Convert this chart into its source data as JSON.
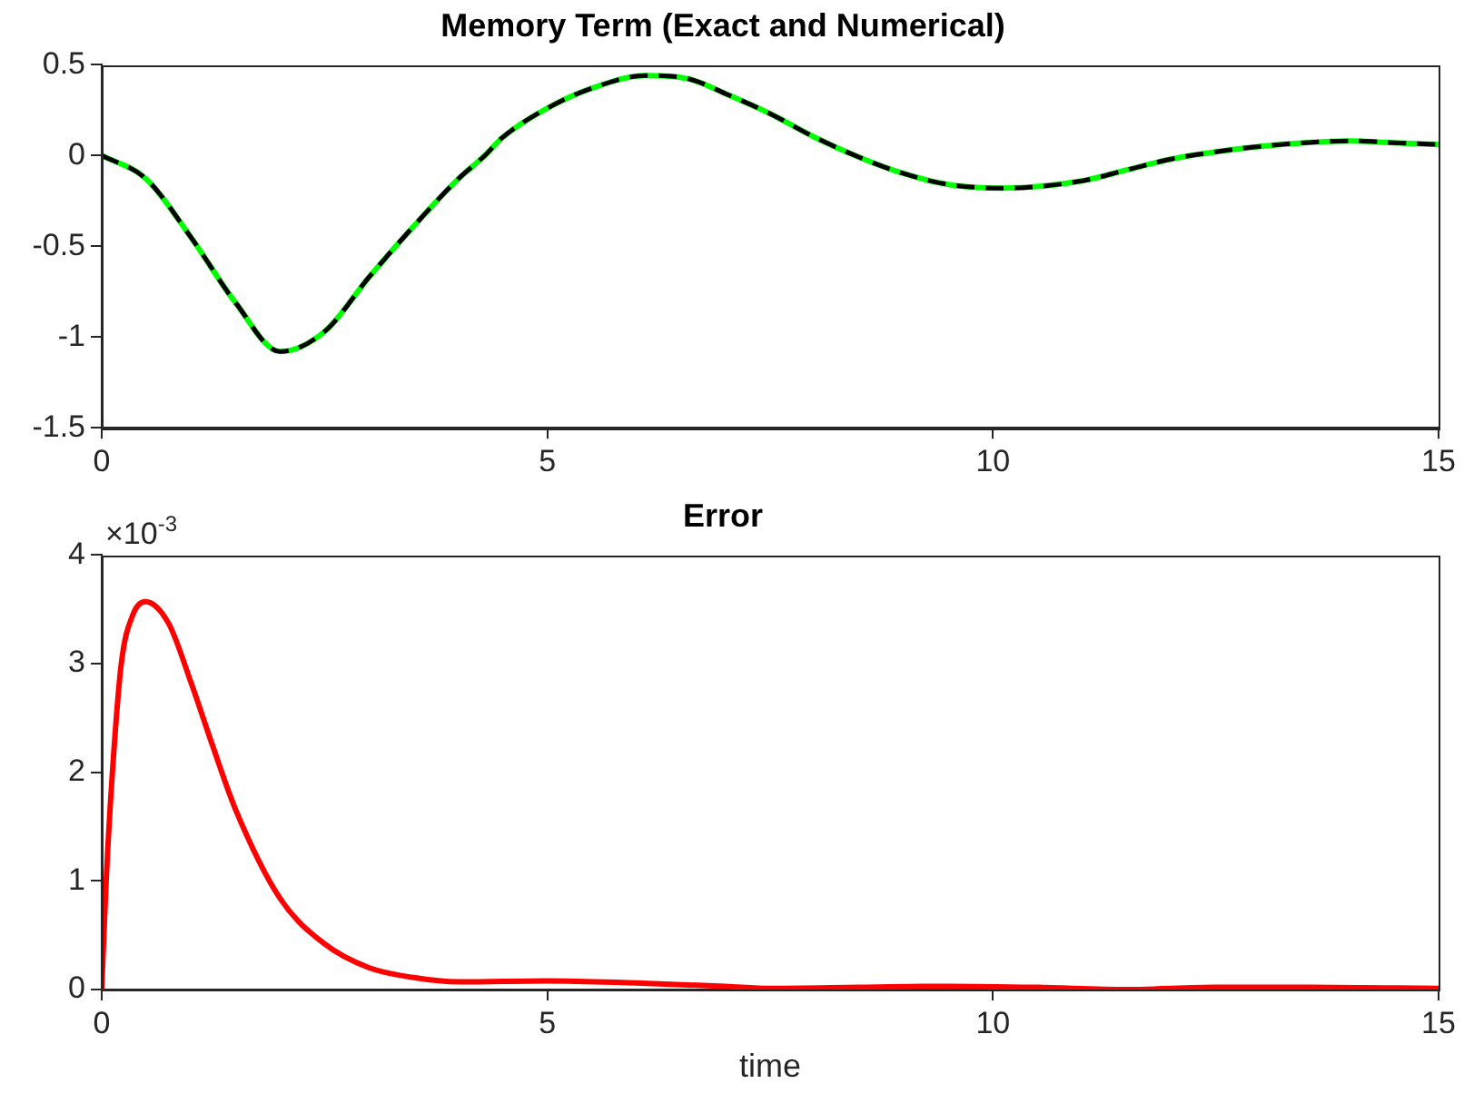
{
  "chart_data": [
    {
      "type": "line",
      "title": "Memory Term (Exact and Numerical)",
      "x": [
        0,
        0.5,
        1,
        1.5,
        2,
        2.5,
        3,
        3.5,
        4,
        4.3,
        4.5,
        5,
        5.5,
        6.1,
        6.6,
        7,
        7.5,
        8,
        8.5,
        9,
        9.5,
        10.1,
        11,
        11.5,
        12,
        12.5,
        13,
        13.5,
        14,
        14.5,
        15
      ],
      "series": [
        {
          "color": "#00ff00",
          "line_style": "solid",
          "values": [
            0,
            -0.13,
            -0.45,
            -0.81,
            -1.08,
            -0.97,
            -0.67,
            -0.39,
            -0.13,
            0,
            0.1,
            0.26,
            0.37,
            0.44,
            0.42,
            0.34,
            0.23,
            0.1,
            -0.01,
            -0.1,
            -0.16,
            -0.18,
            -0.14,
            -0.08,
            -0.02,
            0.02,
            0.05,
            0.07,
            0.08,
            0.07,
            0.06
          ]
        },
        {
          "color": "#000000",
          "line_style": "dashed",
          "values": [
            0,
            -0.13,
            -0.45,
            -0.81,
            -1.08,
            -0.97,
            -0.67,
            -0.39,
            -0.13,
            0,
            0.1,
            0.26,
            0.37,
            0.44,
            0.42,
            0.34,
            0.23,
            0.1,
            -0.01,
            -0.1,
            -0.16,
            -0.18,
            -0.14,
            -0.08,
            -0.02,
            0.02,
            0.05,
            0.07,
            0.08,
            0.07,
            0.06
          ]
        }
      ],
      "xlim": [
        0,
        15
      ],
      "xticks": [
        0,
        5,
        10,
        15
      ],
      "ylim": [
        -1.5,
        0.5
      ],
      "yticks": [
        -1.5,
        -1,
        -0.5,
        0,
        0.5
      ]
    },
    {
      "type": "line",
      "title": "Error",
      "xlabel": "time",
      "annotations": [
        "×10$^{-3}$"
      ],
      "x": [
        0,
        0.05,
        0.12,
        0.22,
        0.35,
        0.49,
        0.75,
        1,
        1.25,
        1.5,
        2,
        2.5,
        3,
        3.5,
        4,
        5,
        6,
        7,
        7.5,
        8.5,
        9.5,
        10.5,
        11.5,
        12.5,
        13.5,
        15
      ],
      "series": [
        {
          "color": "#ff0000",
          "line_style": "solid",
          "values": [
            0,
            1,
            2,
            3,
            3.45,
            3.57,
            3.37,
            2.83,
            2.23,
            1.66,
            0.84,
            0.42,
            0.2,
            0.11,
            0.07,
            0.08,
            0.06,
            0.03,
            0.01,
            0.02,
            0.03,
            0.02,
            0,
            0.02,
            0.02,
            0.01
          ]
        }
      ],
      "xlim": [
        0,
        15
      ],
      "xticks": [
        0,
        5,
        10,
        15
      ],
      "ylim": [
        0,
        4
      ],
      "yticks": [
        0,
        1,
        2,
        3,
        4
      ]
    }
  ]
}
